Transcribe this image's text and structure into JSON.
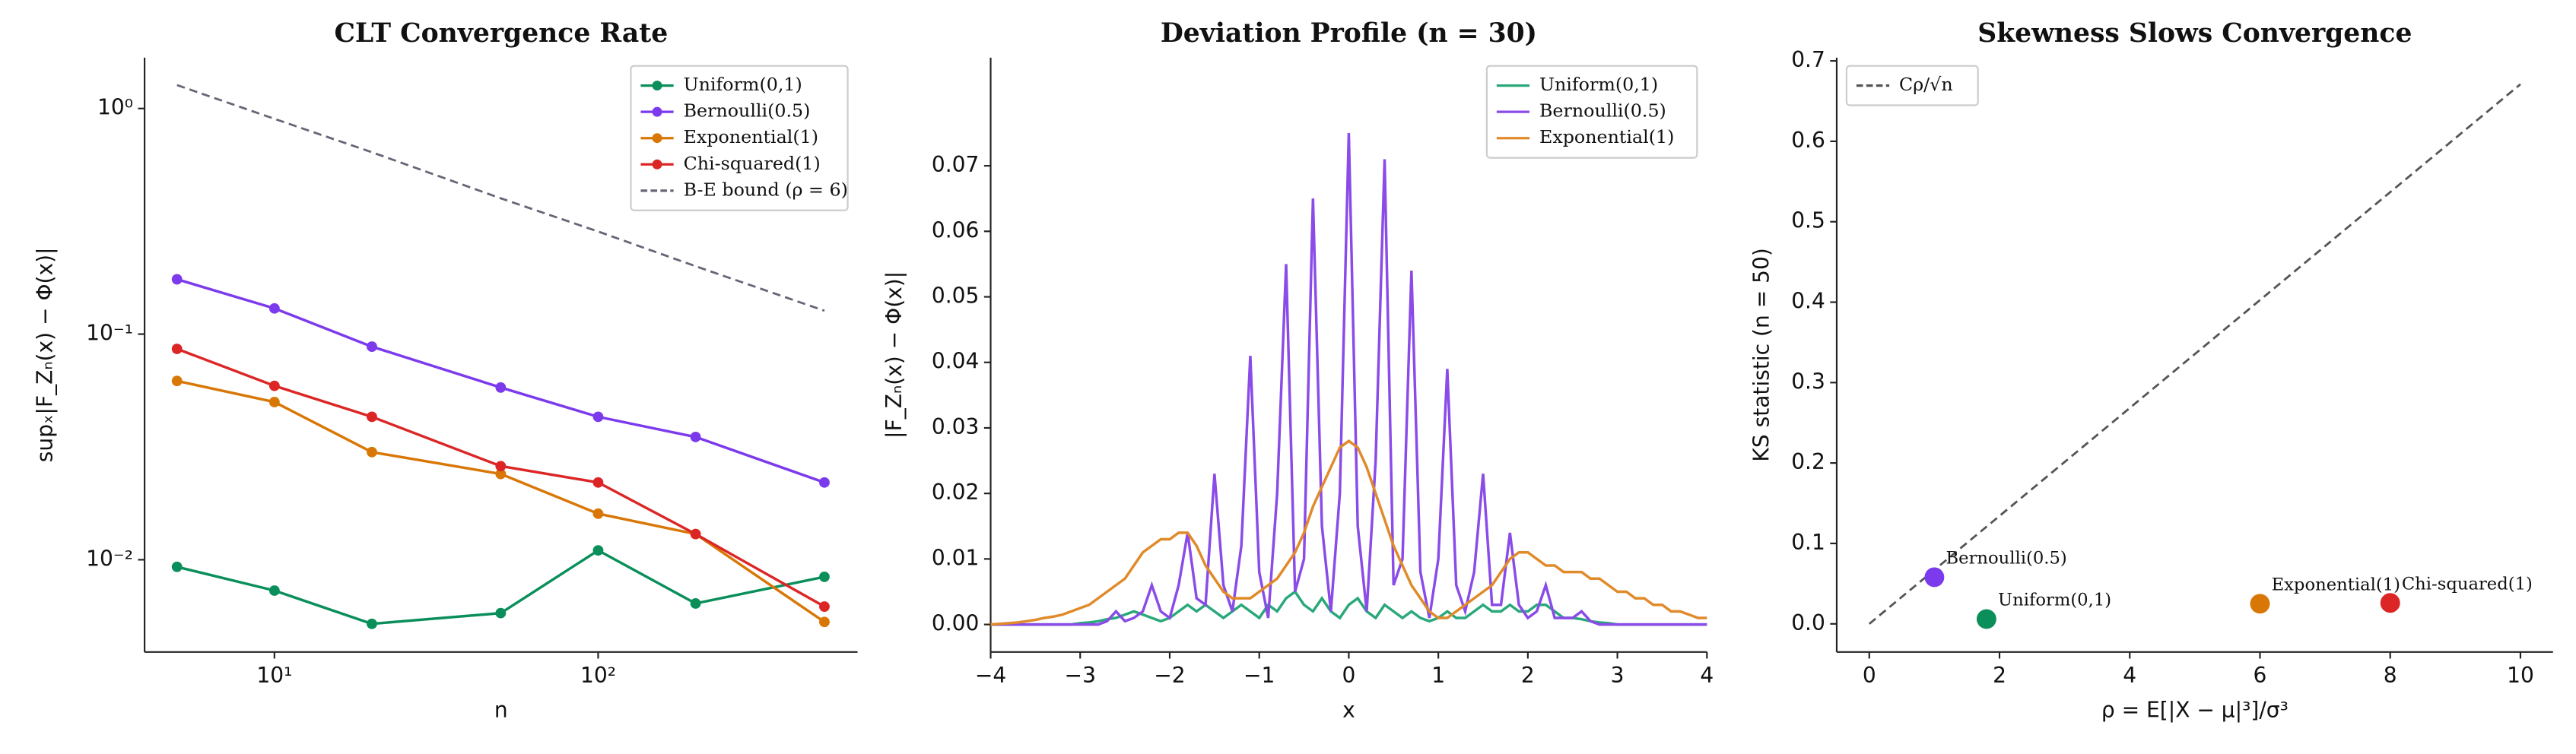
{
  "chart_data": [
    {
      "type": "line",
      "title": "CLT Convergence Rate",
      "xlabel": "n",
      "ylabel": "supₓ|F_Zₙ(x) − Φ(x)|",
      "xlog": true,
      "ylog": true,
      "markers": true,
      "legend": "upper right",
      "x": [
        5,
        10,
        20,
        50,
        100,
        200,
        500
      ],
      "xlim": [
        3.97,
        633
      ],
      "ylim": [
        0.0039,
        1.68
      ],
      "xticks": [
        {
          "value": 10,
          "label": "10¹"
        },
        {
          "value": 100,
          "label": "10²"
        }
      ],
      "yticks": [
        {
          "value": 0.01,
          "label": "10⁻²"
        },
        {
          "value": 0.1,
          "label": "10⁻¹"
        },
        {
          "value": 1,
          "label": "10⁰"
        }
      ],
      "series": [
        {
          "name": "Uniform(0,1)",
          "color": "#0a8f5b",
          "values": [
            0.0093,
            0.0073,
            0.0052,
            0.0058,
            0.011,
            0.0064,
            0.0084
          ]
        },
        {
          "name": "Bernoulli(0.5)",
          "color": "#7c3aed",
          "values": [
            0.175,
            0.13,
            0.088,
            0.058,
            0.043,
            0.035,
            0.022
          ]
        },
        {
          "name": "Exponential(1)",
          "color": "#d97706",
          "values": [
            0.062,
            0.05,
            0.03,
            0.024,
            0.016,
            0.013,
            0.0053
          ]
        },
        {
          "name": "Chi-squared(1)",
          "color": "#dc2626",
          "values": [
            0.086,
            0.059,
            0.043,
            0.026,
            0.022,
            0.013,
            0.0062
          ]
        },
        {
          "name": "B-E bound (ρ = 6)",
          "color": "#666677",
          "dashed": true,
          "nomarker": true,
          "values": [
            1.27,
            0.9,
            0.64,
            0.4,
            0.285,
            0.2,
            0.127
          ]
        }
      ]
    },
    {
      "type": "line",
      "title": "Deviation Profile (n = 30)",
      "xlabel": "x",
      "ylabel": "|F_Zₙ(x) − Φ(x)|",
      "legend": "upper right",
      "x": [
        -4,
        -3.9,
        -3.8,
        -3.7,
        -3.6,
        -3.5,
        -3.4,
        -3.3,
        -3.2,
        -3.1,
        -3,
        -2.9,
        -2.8,
        -2.7,
        -2.6,
        -2.5,
        -2.4,
        -2.3,
        -2.2,
        -2.1,
        -2,
        -1.9,
        -1.8,
        -1.7,
        -1.6,
        -1.5,
        -1.4,
        -1.3,
        -1.2,
        -1.1,
        -1,
        -0.9,
        -0.8,
        -0.7,
        -0.6,
        -0.5,
        -0.4,
        -0.3,
        -0.2,
        -0.1,
        0,
        0.1,
        0.2,
        0.3,
        0.4,
        0.5,
        0.6,
        0.7,
        0.8,
        0.9,
        1,
        1.1,
        1.2,
        1.3,
        1.4,
        1.5,
        1.6,
        1.7,
        1.8,
        1.9,
        2,
        2.1,
        2.2,
        2.3,
        2.4,
        2.5,
        2.6,
        2.7,
        2.8,
        2.9,
        3,
        3.1,
        3.2,
        3.3,
        3.4,
        3.5,
        3.6,
        3.7,
        3.8,
        3.9,
        4
      ],
      "xlim": [
        -4,
        4
      ],
      "ylim": [
        -0.0042,
        0.0865
      ],
      "xticks": [
        {
          "value": -4,
          "label": "−4"
        },
        {
          "value": -3,
          "label": "−3"
        },
        {
          "value": -2,
          "label": "−2"
        },
        {
          "value": -1,
          "label": "−1"
        },
        0,
        1,
        2,
        3,
        4
      ],
      "yticks": [
        {
          "value": 0,
          "label": "0.00"
        },
        {
          "value": 0.01,
          "label": "0.01"
        },
        {
          "value": 0.02,
          "label": "0.02"
        },
        {
          "value": 0.03,
          "label": "0.03"
        },
        {
          "value": 0.04,
          "label": "0.04"
        },
        {
          "value": 0.05,
          "label": "0.05"
        },
        {
          "value": 0.06,
          "label": "0.06"
        },
        {
          "value": 0.07,
          "label": "0.07"
        }
      ],
      "series": [
        {
          "name": "Uniform(0,1)",
          "color": "#2aa87a",
          "values": [
            0,
            0,
            0,
            0,
            0,
            0,
            0,
            0,
            0,
            0,
            0.0002,
            0.0003,
            0.0005,
            0.0008,
            0.001,
            0.0015,
            0.002,
            0.0015,
            0.001,
            0.0005,
            0.001,
            0.002,
            0.003,
            0.002,
            0.003,
            0.002,
            0.001,
            0.002,
            0.003,
            0.002,
            0.001,
            0.003,
            0.002,
            0.004,
            0.005,
            0.003,
            0.002,
            0.004,
            0.002,
            0.001,
            0.003,
            0.004,
            0.002,
            0.001,
            0.003,
            0.002,
            0.001,
            0.002,
            0.001,
            0.0005,
            0.001,
            0.002,
            0.001,
            0.001,
            0.002,
            0.003,
            0.002,
            0.002,
            0.003,
            0.002,
            0.002,
            0.003,
            0.003,
            0.002,
            0.001,
            0.001,
            0.0008,
            0.0005,
            0.0003,
            0.0002,
            0,
            0,
            0,
            0,
            0,
            0,
            0,
            0,
            0,
            0,
            0
          ]
        },
        {
          "name": "Bernoulli(0.5)",
          "color": "#8a4be8",
          "values": [
            0,
            0,
            0,
            0,
            0,
            0,
            0,
            0,
            0,
            0,
            0,
            0,
            0,
            0.0005,
            0.002,
            0.0005,
            0.001,
            0.002,
            0.006,
            0.002,
            0.001,
            0.006,
            0.014,
            0.004,
            0.003,
            0.023,
            0.006,
            0.002,
            0.012,
            0.041,
            0.008,
            0.001,
            0.02,
            0.055,
            0.005,
            0.01,
            0.065,
            0.015,
            0.002,
            0.02,
            0.075,
            0.015,
            0.002,
            0.025,
            0.071,
            0.006,
            0.01,
            0.054,
            0.008,
            0.001,
            0.01,
            0.039,
            0.006,
            0.002,
            0.008,
            0.023,
            0.003,
            0.003,
            0.014,
            0.003,
            0.001,
            0.002,
            0.006,
            0.001,
            0.001,
            0.001,
            0.002,
            0.0005,
            0,
            0,
            0,
            0,
            0,
            0,
            0,
            0,
            0,
            0,
            0,
            0,
            0
          ]
        },
        {
          "name": "Exponential(1)",
          "color": "#e08a2a",
          "values": [
            0,
            0.0001,
            0.0002,
            0.0003,
            0.0005,
            0.0007,
            0.001,
            0.0012,
            0.0015,
            0.002,
            0.0025,
            0.003,
            0.004,
            0.005,
            0.006,
            0.007,
            0.009,
            0.011,
            0.012,
            0.013,
            0.013,
            0.014,
            0.014,
            0.012,
            0.009,
            0.007,
            0.005,
            0.004,
            0.004,
            0.004,
            0.005,
            0.006,
            0.007,
            0.009,
            0.011,
            0.014,
            0.018,
            0.021,
            0.024,
            0.027,
            0.028,
            0.027,
            0.024,
            0.02,
            0.016,
            0.012,
            0.009,
            0.006,
            0.004,
            0.002,
            0.001,
            0.001,
            0.002,
            0.003,
            0.004,
            0.005,
            0.006,
            0.008,
            0.01,
            0.011,
            0.011,
            0.01,
            0.009,
            0.009,
            0.008,
            0.008,
            0.008,
            0.007,
            0.007,
            0.006,
            0.005,
            0.005,
            0.004,
            0.004,
            0.003,
            0.003,
            0.002,
            0.002,
            0.0015,
            0.001,
            0.001
          ]
        }
      ]
    },
    {
      "type": "scatter",
      "title": "Skewness Slows Convergence",
      "xlabel": "ρ = E[|X − μ|³]/σ³",
      "ylabel": "KS statistic (n = 50)",
      "legend": "upper left",
      "xlim": [
        -0.5,
        10.5
      ],
      "ylim": [
        -0.035,
        0.704
      ],
      "xticks": [
        0,
        2,
        4,
        6,
        8,
        10
      ],
      "yticks": [
        {
          "value": 0,
          "label": "0.0"
        },
        0.1,
        0.2,
        0.3,
        0.4,
        0.5,
        0.6,
        0.7
      ],
      "series": [
        {
          "name": "Cρ/√n",
          "color": "#555555",
          "dashed": true,
          "x": [
            0,
            10
          ],
          "values": [
            0,
            0.671
          ]
        }
      ],
      "points": [
        {
          "name": "Bernoulli(0.5)",
          "color": "#7c3aed",
          "x": 1,
          "y": 0.058
        },
        {
          "name": "Uniform(0,1)",
          "color": "#0a8f5b",
          "x": 1.8,
          "y": 0.006
        },
        {
          "name": "Exponential(1)",
          "color": "#d97706",
          "x": 6,
          "y": 0.025
        },
        {
          "name": "Chi-squared(1)",
          "color": "#dc2626",
          "x": 8,
          "y": 0.026
        }
      ]
    }
  ]
}
